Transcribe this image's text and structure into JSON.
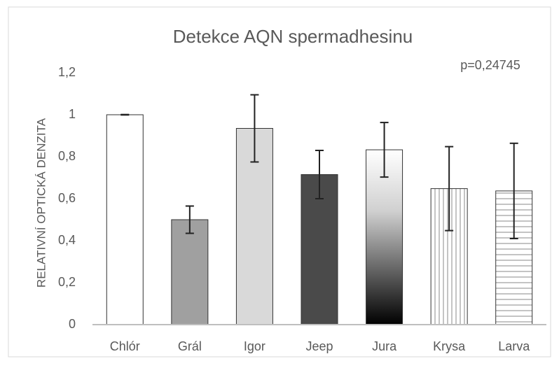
{
  "chart_data": {
    "type": "bar",
    "title": "Detekce AQN spermadhesinu",
    "annotation": "p=0,24745",
    "ylabel": "RELATIVNÍ OPTICKÁ DENZITA",
    "categories": [
      "Chlór",
      "Grál",
      "Igor",
      "Jeep",
      "Jura",
      "Krysa",
      "Larva"
    ],
    "values": [
      1.0,
      0.5,
      0.935,
      0.715,
      0.833,
      0.648,
      0.637
    ],
    "errors": [
      0.001,
      0.065,
      0.16,
      0.115,
      0.13,
      0.2,
      0.227
    ],
    "styles": [
      "#ffffff",
      "#a0a0a0",
      "#d9d9d9",
      "#4a4a4a",
      "gradient",
      "vstripes",
      "hstripes"
    ],
    "ylim": [
      0,
      1.2
    ],
    "yticks": [
      0,
      {
        "value": 0.2,
        "label": "0,2"
      },
      {
        "value": 0.4,
        "label": "0,4"
      },
      {
        "value": 0.6,
        "label": "0,6"
      },
      {
        "value": 0.8,
        "label": "0,8"
      },
      1,
      {
        "value": 1.2,
        "label": "1,2"
      }
    ],
    "grid": false
  }
}
